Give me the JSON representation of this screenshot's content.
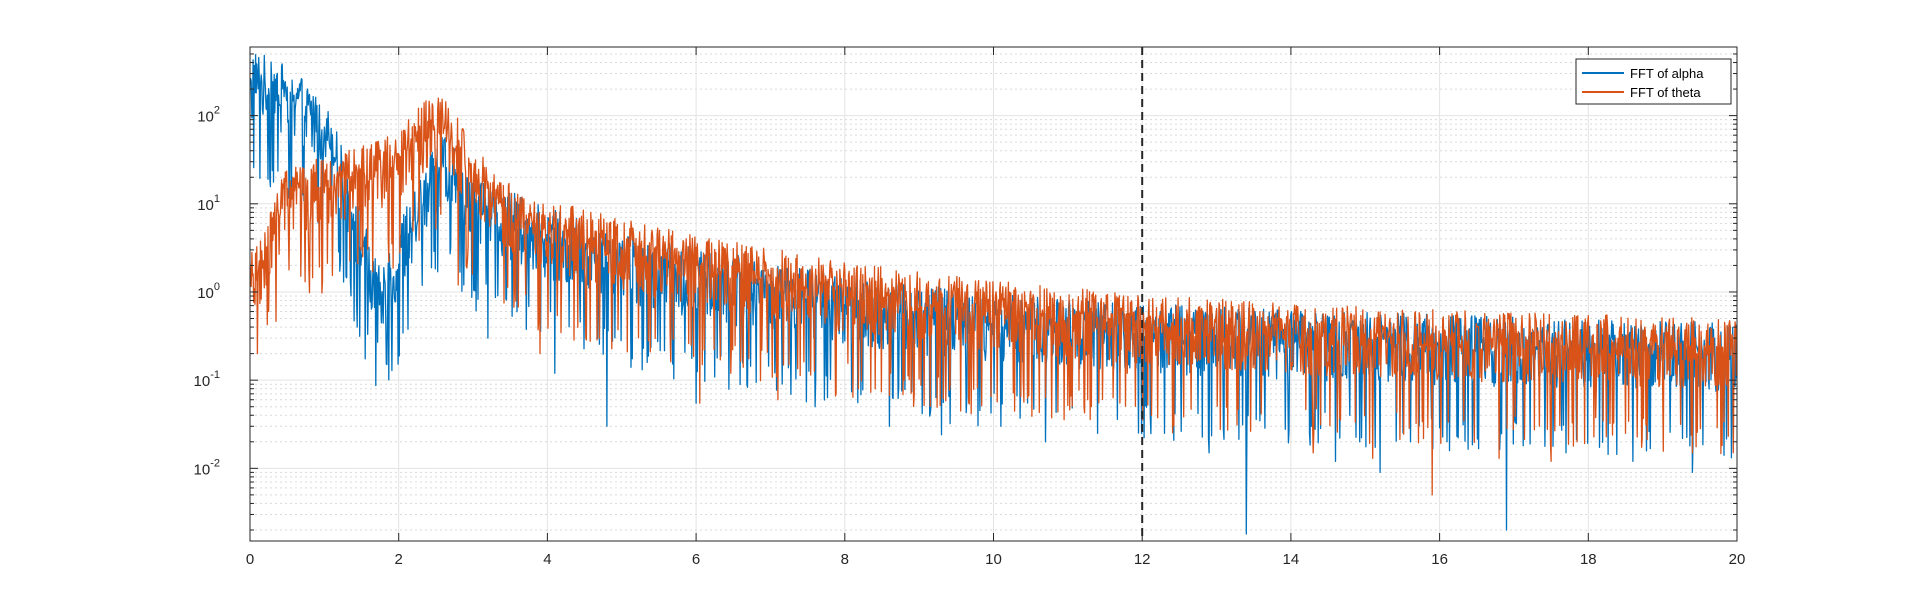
{
  "chart_data": {
    "type": "line",
    "title": "",
    "xlabel": "",
    "ylabel": "",
    "xlim": [
      0,
      20
    ],
    "ylim": [
      0.0015,
      600
    ],
    "y_scale": "log",
    "grid": true,
    "minor_grid": true,
    "x_ticks": [
      "0",
      "2",
      "4",
      "6",
      "8",
      "10",
      "12",
      "14",
      "16",
      "18",
      "20"
    ],
    "y_ticks": [
      {
        "value": 0.01,
        "base": "10",
        "exp": "-2"
      },
      {
        "value": 0.1,
        "base": "10",
        "exp": "-1"
      },
      {
        "value": 1,
        "base": "10",
        "exp": "0"
      },
      {
        "value": 10,
        "base": "10",
        "exp": "1"
      },
      {
        "value": 100,
        "base": "10",
        "exp": "2"
      }
    ],
    "legend_position": "top-right",
    "vertical_line": {
      "x": 12,
      "style": "dashed",
      "color": "#262626"
    },
    "series": [
      {
        "name": "FFT of alpha",
        "color": "#0072BD",
        "envelope": [
          [
            0,
            250
          ],
          [
            0.3,
            200
          ],
          [
            0.6,
            150
          ],
          [
            1.0,
            70
          ],
          [
            1.2,
            25
          ],
          [
            1.4,
            6
          ],
          [
            1.6,
            2
          ],
          [
            1.75,
            0.8
          ],
          [
            1.9,
            1.5
          ],
          [
            2.1,
            4
          ],
          [
            2.4,
            15
          ],
          [
            2.6,
            30
          ],
          [
            3.0,
            10
          ],
          [
            4,
            4
          ],
          [
            5,
            2.2
          ],
          [
            6,
            1.4
          ],
          [
            7,
            1.0
          ],
          [
            8,
            0.7
          ],
          [
            9,
            0.55
          ],
          [
            10,
            0.45
          ],
          [
            11,
            0.38
          ],
          [
            12,
            0.33
          ],
          [
            14,
            0.28
          ],
          [
            16,
            0.25
          ],
          [
            18,
            0.22
          ],
          [
            20,
            0.2
          ]
        ],
        "dips": [
          [
            1.58,
            0.33
          ],
          [
            1.72,
            0.27
          ],
          [
            3.2,
            0.3
          ],
          [
            4.1,
            0.12
          ],
          [
            4.8,
            0.03
          ],
          [
            6.0,
            0.055
          ],
          [
            7.6,
            0.05
          ],
          [
            8.6,
            0.03
          ],
          [
            9.3,
            0.024
          ],
          [
            10.1,
            0.03
          ],
          [
            10.7,
            0.02
          ],
          [
            11.4,
            0.025
          ],
          [
            12.3,
            0.025
          ],
          [
            12.9,
            0.015
          ],
          [
            13.4,
            0.0018
          ],
          [
            14.6,
            0.012
          ],
          [
            15.2,
            0.009
          ],
          [
            16.1,
            0.02
          ],
          [
            16.9,
            0.002
          ],
          [
            17.7,
            0.015
          ],
          [
            18.6,
            0.012
          ],
          [
            19.4,
            0.009
          ]
        ]
      },
      {
        "name": "FFT of theta",
        "color": "#D95319",
        "envelope": [
          [
            0,
            1.2
          ],
          [
            0.15,
            2
          ],
          [
            0.3,
            5
          ],
          [
            0.5,
            12
          ],
          [
            1.0,
            15
          ],
          [
            1.5,
            20
          ],
          [
            2.0,
            30
          ],
          [
            2.3,
            60
          ],
          [
            2.5,
            80
          ],
          [
            2.7,
            60
          ],
          [
            3.0,
            20
          ],
          [
            3.5,
            8
          ],
          [
            4,
            5
          ],
          [
            5,
            3
          ],
          [
            6,
            2
          ],
          [
            7,
            1.4
          ],
          [
            8,
            1.0
          ],
          [
            9,
            0.75
          ],
          [
            10,
            0.6
          ],
          [
            11,
            0.5
          ],
          [
            12,
            0.42
          ],
          [
            14,
            0.33
          ],
          [
            16,
            0.28
          ],
          [
            18,
            0.25
          ],
          [
            20,
            0.22
          ]
        ],
        "dips": [
          [
            0.1,
            0.2
          ],
          [
            0.25,
            0.6
          ],
          [
            2.8,
            1.2
          ],
          [
            3.9,
            0.2
          ],
          [
            4.7,
            0.3
          ],
          [
            6.05,
            0.055
          ],
          [
            7.1,
            0.06
          ],
          [
            8.8,
            0.1
          ],
          [
            10.4,
            0.1
          ],
          [
            11.8,
            0.12
          ],
          [
            14.3,
            0.015
          ],
          [
            15.1,
            0.013
          ],
          [
            15.9,
            0.005
          ],
          [
            16.8,
            0.013
          ],
          [
            17.5,
            0.012
          ],
          [
            18.5,
            0.025
          ],
          [
            19.4,
            0.015
          ]
        ]
      }
    ]
  }
}
